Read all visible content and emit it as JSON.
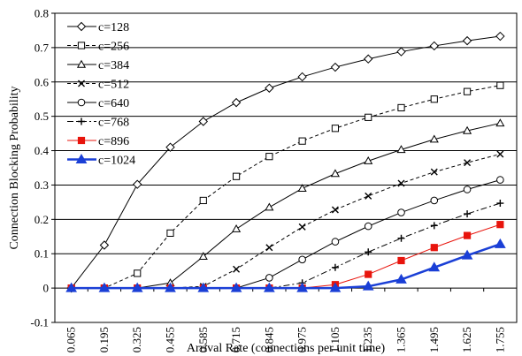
{
  "chart_data": {
    "type": "line",
    "title": "",
    "xlabel": "Arrival Rate (connections per unit time)",
    "ylabel": "Connection Blocking Probability",
    "x": [
      "0.065",
      "0.195",
      "0.325",
      "0.455",
      "0.585",
      "0.715",
      "0.845",
      "0.975",
      "1.105",
      "1.235",
      "1.365",
      "1.495",
      "1.625",
      "1.755"
    ],
    "ylim": [
      -0.1,
      0.8
    ],
    "yticks": [
      "-0.1",
      "0",
      "0.1",
      "0.2",
      "0.3",
      "0.4",
      "0.5",
      "0.6",
      "0.7",
      "0.8"
    ],
    "grid": "horizontal",
    "legend_position": "top-left",
    "series": [
      {
        "name": "c=128",
        "color": "#000000",
        "dash": "solid",
        "marker": "diamond",
        "values": [
          0.0,
          0.125,
          0.302,
          0.41,
          0.485,
          0.54,
          0.582,
          0.615,
          0.643,
          0.667,
          0.688,
          0.705,
          0.72,
          0.733
        ]
      },
      {
        "name": "c=256",
        "color": "#000000",
        "dash": "dashed",
        "marker": "square-open",
        "values": [
          0.0,
          0.0,
          0.043,
          0.16,
          0.255,
          0.325,
          0.383,
          0.428,
          0.465,
          0.497,
          0.525,
          0.55,
          0.572,
          0.59
        ]
      },
      {
        "name": "c=384",
        "color": "#000000",
        "dash": "solid",
        "marker": "triangle-open",
        "values": [
          0.0,
          0.0,
          0.0,
          0.015,
          0.092,
          0.172,
          0.235,
          0.29,
          0.333,
          0.37,
          0.403,
          0.433,
          0.458,
          0.48
        ]
      },
      {
        "name": "c=512",
        "color": "#000000",
        "dash": "dashed",
        "marker": "x",
        "values": [
          0.0,
          0.0,
          0.0,
          0.0,
          0.005,
          0.055,
          0.118,
          0.178,
          0.228,
          0.268,
          0.305,
          0.338,
          0.365,
          0.39
        ]
      },
      {
        "name": "c=640",
        "color": "#000000",
        "dash": "solid",
        "marker": "circle-open",
        "values": [
          0.0,
          0.0,
          0.0,
          0.0,
          0.0,
          0.0,
          0.03,
          0.083,
          0.135,
          0.18,
          0.22,
          0.255,
          0.287,
          0.315
        ]
      },
      {
        "name": "c=768",
        "color": "#000000",
        "dash": "dashdot",
        "marker": "plus",
        "values": [
          0.0,
          0.0,
          0.0,
          0.0,
          0.0,
          0.0,
          0.0,
          0.015,
          0.06,
          0.105,
          0.145,
          0.182,
          0.216,
          0.247
        ]
      },
      {
        "name": "c=896",
        "color": "#e8140c",
        "dash": "solid",
        "marker": "square-filled",
        "values": [
          0.0,
          0.0,
          0.0,
          0.0,
          0.0,
          0.0,
          0.0,
          0.0,
          0.01,
          0.04,
          0.08,
          0.118,
          0.153,
          0.185
        ]
      },
      {
        "name": "c=1024",
        "color": "#1a3fd6",
        "dash": "solid",
        "marker": "triangle-filled",
        "values": [
          0.0,
          0.0,
          0.0,
          0.0,
          0.0,
          0.0,
          0.0,
          0.0,
          0.0,
          0.005,
          0.025,
          0.06,
          0.095,
          0.128
        ]
      }
    ]
  }
}
